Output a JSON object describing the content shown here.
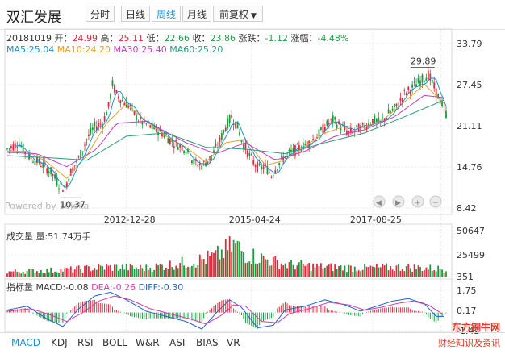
{
  "header": {
    "title": "双汇发展",
    "tabs": [
      {
        "label": "分时"
      },
      {
        "label": "日线"
      },
      {
        "label": "周线"
      },
      {
        "label": "月线"
      },
      {
        "label": "前复权"
      }
    ],
    "active_tab": "周线"
  },
  "quote": {
    "date": "20181019",
    "open_label": "开：",
    "open": "24.99",
    "high_label": "高：",
    "high": "25.11",
    "low_label": "低：",
    "low": "22.66",
    "close_label": "收：",
    "close": "23.86",
    "change_label": "涨跌：",
    "change": "-1.12",
    "pct_label": "涨幅：",
    "pct": "-4.48%"
  },
  "ma_legend": [
    {
      "name": "MA5",
      "value": "25.04",
      "color": "#1e90d6"
    },
    {
      "name": "MA10",
      "value": "24.20",
      "color": "#e6a12e"
    },
    {
      "name": "MA30",
      "value": "25.40",
      "color": "#c03fc0"
    },
    {
      "name": "MA60",
      "value": "25.20",
      "color": "#2a9d7a"
    }
  ],
  "volume_label": "成交量 量:51.74万手",
  "macd_legend": {
    "name": "指标量",
    "macd": "MACD:-0.08",
    "dea": "DEA:-0.26",
    "diff": "DIFF:-0.30"
  },
  "indicator_tabs": [
    "MACD",
    "KDJ",
    "RSI",
    "BOLL",
    "W&R",
    "ASI",
    "BIAS",
    "VR"
  ],
  "active_indicator": "MACD",
  "watermark": "Powered by 10jqka",
  "brand_line1": "东方铜牛网",
  "brand_line2": "财经知识及资讯",
  "chart_data": {
    "type": "candlestick",
    "price_axis": {
      "ticks": [
        "33.79",
        "27.45",
        "21.11",
        "14.76",
        "8.42"
      ],
      "ylim": [
        8.42,
        33.79
      ]
    },
    "date_ticks": [
      "2012-12-28",
      "2015-04-24",
      "2017-08-25"
    ],
    "annotations": [
      {
        "label": "29.89",
        "kind": "max"
      },
      {
        "label": "10.37",
        "kind": "min"
      }
    ],
    "volume_axis": {
      "ticks": [
        "50647",
        "25499",
        "351"
      ]
    },
    "macd_axis": {
      "ticks": [
        "1.75",
        "0.17",
        "-1.42"
      ]
    },
    "price_path": [
      [
        0,
        17.5
      ],
      [
        6,
        18.5
      ],
      [
        10,
        16.5
      ],
      [
        16,
        15.5
      ],
      [
        22,
        14
      ],
      [
        26,
        12
      ],
      [
        29,
        11.5
      ],
      [
        32,
        14
      ],
      [
        36,
        16
      ],
      [
        40,
        19
      ],
      [
        44,
        21
      ],
      [
        48,
        21.5
      ],
      [
        51,
        24
      ],
      [
        53,
        27.5
      ],
      [
        55,
        26
      ],
      [
        58,
        25
      ],
      [
        62,
        24
      ],
      [
        66,
        22
      ],
      [
        72,
        21
      ],
      [
        78,
        20
      ],
      [
        84,
        18.5
      ],
      [
        90,
        17.5
      ],
      [
        94,
        15.5
      ],
      [
        98,
        15
      ],
      [
        102,
        16
      ],
      [
        106,
        18
      ],
      [
        110,
        21
      ],
      [
        113,
        22.5
      ],
      [
        116,
        21
      ],
      [
        118,
        19
      ],
      [
        121,
        17
      ],
      [
        124,
        15.5
      ],
      [
        127,
        14.5
      ],
      [
        130,
        14.8
      ],
      [
        133,
        13.5
      ],
      [
        136,
        15
      ],
      [
        140,
        16.5
      ],
      [
        146,
        17.5
      ],
      [
        152,
        18.5
      ],
      [
        156,
        19.5
      ],
      [
        160,
        21
      ],
      [
        164,
        22
      ],
      [
        168,
        21
      ],
      [
        172,
        20
      ],
      [
        176,
        20.5
      ],
      [
        180,
        21
      ],
      [
        184,
        22
      ],
      [
        188,
        21.5
      ],
      [
        192,
        23
      ],
      [
        196,
        24
      ],
      [
        200,
        26
      ],
      [
        204,
        27
      ],
      [
        208,
        28
      ],
      [
        212,
        29
      ],
      [
        215,
        27
      ],
      [
        218,
        25
      ],
      [
        221,
        23
      ]
    ],
    "ma_paths": {
      "MA10": [
        [
          0,
          17.2
        ],
        [
          10,
          17.2
        ],
        [
          20,
          15.5
        ],
        [
          30,
          13
        ],
        [
          40,
          16.5
        ],
        [
          50,
          21.5
        ],
        [
          60,
          24.5
        ],
        [
          70,
          21.8
        ],
        [
          80,
          19.5
        ],
        [
          90,
          17.8
        ],
        [
          100,
          15.5
        ],
        [
          110,
          18.5
        ],
        [
          120,
          19
        ],
        [
          130,
          15
        ],
        [
          140,
          15.8
        ],
        [
          150,
          18
        ],
        [
          160,
          20
        ],
        [
          170,
          21
        ],
        [
          180,
          20.8
        ],
        [
          190,
          22.2
        ],
        [
          200,
          24.8
        ],
        [
          210,
          27.5
        ],
        [
          221,
          24.3
        ]
      ],
      "MA30": [
        [
          0,
          17
        ],
        [
          15,
          16.8
        ],
        [
          30,
          14.8
        ],
        [
          45,
          17.5
        ],
        [
          55,
          21.5
        ],
        [
          70,
          21.8
        ],
        [
          90,
          18.5
        ],
        [
          105,
          16.8
        ],
        [
          120,
          18.5
        ],
        [
          135,
          15.8
        ],
        [
          150,
          17.2
        ],
        [
          165,
          19.5
        ],
        [
          180,
          20.5
        ],
        [
          195,
          22.5
        ],
        [
          210,
          25.8
        ],
        [
          221,
          25.4
        ]
      ],
      "MA60": [
        [
          0,
          16.5
        ],
        [
          20,
          16.2
        ],
        [
          40,
          15.8
        ],
        [
          60,
          19.5
        ],
        [
          80,
          20
        ],
        [
          100,
          17.8
        ],
        [
          120,
          17.5
        ],
        [
          140,
          16.8
        ],
        [
          160,
          18.5
        ],
        [
          180,
          20
        ],
        [
          200,
          22.5
        ],
        [
          221,
          25.2
        ]
      ]
    },
    "volume_profile": [
      [
        0,
        0.12
      ],
      [
        30,
        0.16
      ],
      [
        50,
        0.22
      ],
      [
        70,
        0.2
      ],
      [
        95,
        0.35
      ],
      [
        105,
        0.45
      ],
      [
        115,
        0.7
      ],
      [
        120,
        0.5
      ],
      [
        140,
        0.28
      ],
      [
        160,
        0.22
      ],
      [
        180,
        0.2
      ],
      [
        200,
        0.22
      ],
      [
        221,
        0.18
      ]
    ],
    "macd_dif": [
      [
        0,
        0.2
      ],
      [
        10,
        0.5
      ],
      [
        20,
        -0.5
      ],
      [
        28,
        -1.1
      ],
      [
        36,
        0.3
      ],
      [
        44,
        1.3
      ],
      [
        52,
        1.6
      ],
      [
        60,
        1.0
      ],
      [
        70,
        0.1
      ],
      [
        80,
        -0.3
      ],
      [
        90,
        -0.7
      ],
      [
        98,
        -1.3
      ],
      [
        106,
        0.1
      ],
      [
        112,
        1.0
      ],
      [
        118,
        0.4
      ],
      [
        126,
        -1.2
      ],
      [
        134,
        -1.0
      ],
      [
        140,
        0.2
      ],
      [
        150,
        0.5
      ],
      [
        160,
        1.0
      ],
      [
        170,
        0.6
      ],
      [
        178,
        0.1
      ],
      [
        186,
        0.5
      ],
      [
        194,
        0.9
      ],
      [
        202,
        1.1
      ],
      [
        210,
        0.7
      ],
      [
        216,
        -0.3
      ],
      [
        221,
        -0.3
      ]
    ],
    "macd_dea": [
      [
        0,
        0.1
      ],
      [
        12,
        0.3
      ],
      [
        22,
        -0.2
      ],
      [
        30,
        -0.7
      ],
      [
        38,
        0
      ],
      [
        46,
        0.9
      ],
      [
        54,
        1.3
      ],
      [
        62,
        1.0
      ],
      [
        72,
        0.3
      ],
      [
        82,
        -0.1
      ],
      [
        92,
        -0.5
      ],
      [
        100,
        -0.9
      ],
      [
        108,
        -0.2
      ],
      [
        114,
        0.6
      ],
      [
        120,
        0.5
      ],
      [
        128,
        -0.7
      ],
      [
        136,
        -0.8
      ],
      [
        142,
        -0.1
      ],
      [
        152,
        0.3
      ],
      [
        162,
        0.8
      ],
      [
        172,
        0.6
      ],
      [
        180,
        0.2
      ],
      [
        188,
        0.4
      ],
      [
        196,
        0.7
      ],
      [
        204,
        0.9
      ],
      [
        212,
        0.6
      ],
      [
        218,
        0
      ],
      [
        221,
        -0.26
      ]
    ]
  }
}
